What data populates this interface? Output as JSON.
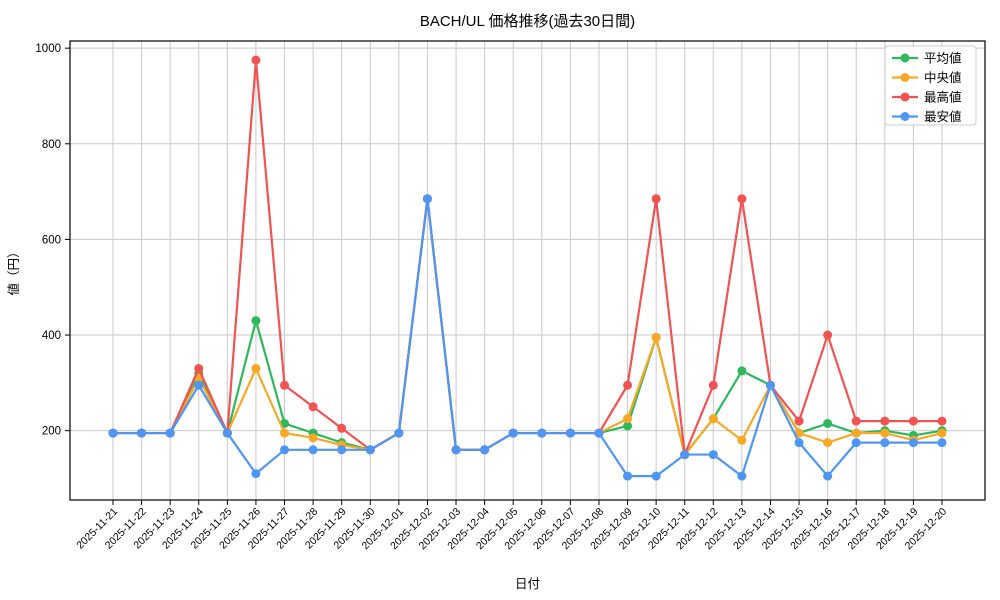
{
  "title": "BACH/UL 価格推移(過去30日間)",
  "chart_data": {
    "type": "line",
    "title": "BACH/UL 価格推移(過去30日間)",
    "xlabel": "日付",
    "ylabel": "値（円）",
    "grid": true,
    "grid_color": "#c9c9c9",
    "background": "#ffffff",
    "legend_position": "top-right",
    "yticks": [
      200,
      400,
      600,
      800,
      1000
    ],
    "ylim": [
      55,
      1015
    ],
    "x": [
      "2025-11-21",
      "2025-11-22",
      "2025-11-23",
      "2025-11-24",
      "2025-11-25",
      "2025-11-26",
      "2025-11-27",
      "2025-11-28",
      "2025-11-29",
      "2025-11-30",
      "2025-12-01",
      "2025-12-02",
      "2025-12-03",
      "2025-12-04",
      "2025-12-05",
      "2025-12-06",
      "2025-12-07",
      "2025-12-08",
      "2025-12-09",
      "2025-12-10",
      "2025-12-11",
      "2025-12-12",
      "2025-12-13",
      "2025-12-14",
      "2025-12-15",
      "2025-12-16",
      "2025-12-17",
      "2025-12-18",
      "2025-12-19",
      "2025-12-20"
    ],
    "series": [
      {
        "name": "平均値",
        "color": "#2eb85c",
        "values": [
          195,
          195,
          195,
          320,
          195,
          430,
          215,
          195,
          175,
          160,
          195,
          685,
          160,
          160,
          195,
          195,
          195,
          195,
          210,
          395,
          150,
          225,
          325,
          295,
          195,
          215,
          195,
          200,
          190,
          200
        ]
      },
      {
        "name": "中央値",
        "color": "#f9a826",
        "values": [
          195,
          195,
          195,
          310,
          195,
          330,
          195,
          185,
          170,
          160,
          195,
          685,
          160,
          160,
          195,
          195,
          195,
          195,
          225,
          395,
          150,
          225,
          180,
          295,
          195,
          175,
          195,
          195,
          180,
          195
        ]
      },
      {
        "name": "最高値",
        "color": "#f35252",
        "values": [
          195,
          195,
          195,
          330,
          195,
          975,
          295,
          250,
          205,
          160,
          195,
          685,
          160,
          160,
          195,
          195,
          195,
          195,
          295,
          685,
          150,
          295,
          685,
          295,
          220,
          400,
          220,
          220,
          220,
          220
        ]
      },
      {
        "name": "最安値",
        "color": "#4d96f5",
        "values": [
          195,
          195,
          195,
          295,
          195,
          110,
          160,
          160,
          160,
          160,
          195,
          685,
          160,
          160,
          195,
          195,
          195,
          195,
          105,
          105,
          150,
          150,
          105,
          295,
          175,
          105,
          175,
          175,
          175,
          175
        ]
      }
    ]
  }
}
